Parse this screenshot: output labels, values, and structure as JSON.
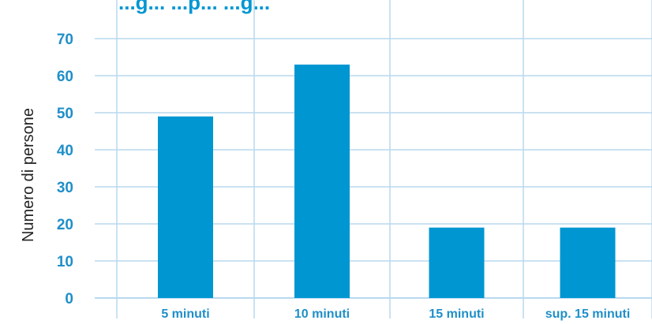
{
  "chart_data": {
    "type": "bar",
    "title": "...g... ...p... ...g...",
    "ylabel": "Numero di persone",
    "xlabel": "",
    "categories": [
      "5 minuti",
      "10 minuti",
      "15 minuti",
      "sup. 15 minuti"
    ],
    "values": [
      49,
      63,
      19,
      19
    ],
    "ylim": [
      0,
      70
    ],
    "yticks": [
      0,
      10,
      20,
      30,
      40,
      50,
      60,
      70
    ],
    "grid": true,
    "legend": "none",
    "colors": {
      "bar": "#0096d2",
      "title": "#0096d2",
      "tick_label": "#1f8fc8",
      "grid": "#b8d9ee",
      "ylabel": "#222222"
    }
  }
}
